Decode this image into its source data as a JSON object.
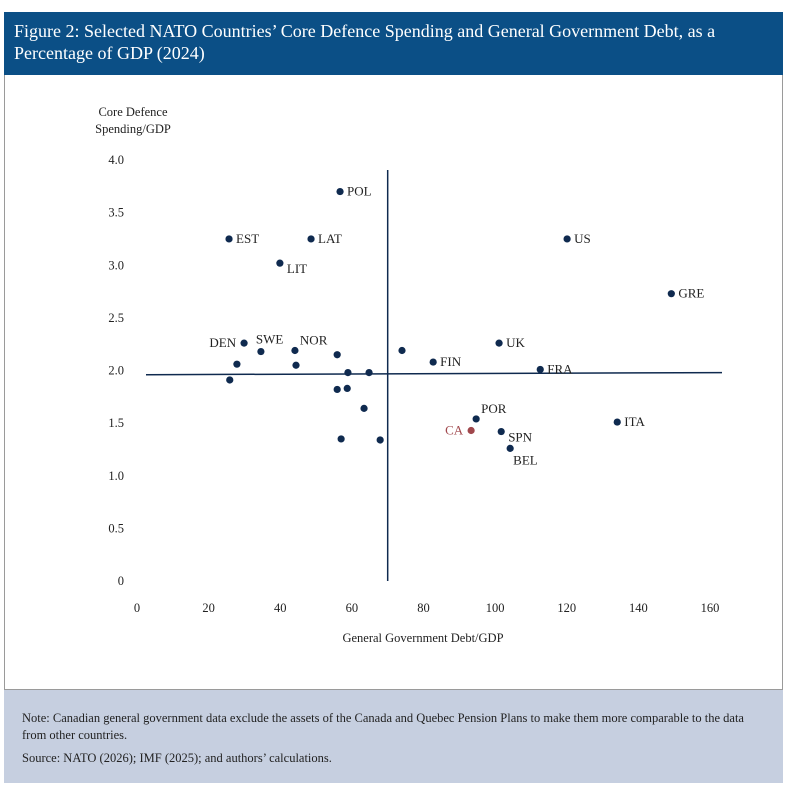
{
  "title": "Figure 2: Selected NATO Countries’ Core Defence Spending and General Government Debt, as a Percentage of GDP (2024)",
  "note": "Note: Canadian general government data exclude the assets of the Canada and Quebec Pension Plans to make them more comparable to the data from other countries.",
  "source": "Source: NATO (2026); IMF (2025); and authors’ calculations.",
  "colors": {
    "header": "#0b4f86",
    "point": "#0f2a4f",
    "highlight": "#a0474c",
    "note_bg": "#c6cfe0"
  },
  "chart_data": {
    "type": "scatter",
    "xlabel": "General Government Debt/GDP",
    "ylabel": [
      "Core Defence",
      "Spending/GDP"
    ],
    "xlim": [
      0,
      160
    ],
    "ylim": [
      0,
      4.0
    ],
    "xticks": [
      "0",
      "20",
      "40",
      "60",
      "80",
      "100",
      "120",
      "140",
      "160"
    ],
    "yticks": [
      "0",
      "0.5",
      "1.0",
      "1.5",
      "2.0",
      "2.5",
      "3.0",
      "3.5",
      "4.0"
    ],
    "grid": false,
    "reference_lines": {
      "vertical_x": 70,
      "horizontal_y": [
        1.96,
        1.98
      ]
    },
    "points": [
      {
        "label": "POL",
        "x": 56.7,
        "y": 3.7,
        "label_position": "right"
      },
      {
        "label": "EST",
        "x": 25.7,
        "y": 3.25,
        "label_position": "right"
      },
      {
        "label": "LAT",
        "x": 48.6,
        "y": 3.25,
        "label_position": "right"
      },
      {
        "label": "LIT",
        "x": 39.9,
        "y": 3.02,
        "label_position": "below-right"
      },
      {
        "label": "US",
        "x": 120.1,
        "y": 3.25,
        "label_position": "right"
      },
      {
        "label": "GRE",
        "x": 149.2,
        "y": 2.73,
        "label_position": "right"
      },
      {
        "label": "DEN",
        "x": 29.9,
        "y": 2.26,
        "label_position": "left"
      },
      {
        "label": "SWE",
        "x": 34.6,
        "y": 2.18,
        "label_position": "above"
      },
      {
        "label": "NOR",
        "x": 44.1,
        "y": 2.19,
        "label_position": "above-right"
      },
      {
        "label": "UK",
        "x": 101.1,
        "y": 2.26,
        "label_position": "right"
      },
      {
        "label": "FIN",
        "x": 82.7,
        "y": 2.08,
        "label_position": "right"
      },
      {
        "label": "FRA",
        "x": 112.6,
        "y": 2.01,
        "label_position": "right"
      },
      {
        "label": "POR",
        "x": 94.7,
        "y": 1.54,
        "label_position": "above-right"
      },
      {
        "label": "CA",
        "x": 93.3,
        "y": 1.43,
        "label_position": "left",
        "highlight": true
      },
      {
        "label": "SPN",
        "x": 101.7,
        "y": 1.42,
        "label_position": "below-right"
      },
      {
        "label": "BEL",
        "x": 104.2,
        "y": 1.26,
        "label_position": "below-right"
      },
      {
        "label": "ITA",
        "x": 134.1,
        "y": 1.51,
        "label_position": "right"
      },
      {
        "label": "",
        "x": 27.9,
        "y": 2.06
      },
      {
        "label": "",
        "x": 25.9,
        "y": 1.91
      },
      {
        "label": "",
        "x": 44.4,
        "y": 2.05
      },
      {
        "label": "",
        "x": 55.9,
        "y": 2.15
      },
      {
        "label": "",
        "x": 74.0,
        "y": 2.19
      },
      {
        "label": "",
        "x": 58.9,
        "y": 1.98
      },
      {
        "label": "",
        "x": 64.8,
        "y": 1.98
      },
      {
        "label": "",
        "x": 55.9,
        "y": 1.82
      },
      {
        "label": "",
        "x": 58.7,
        "y": 1.83
      },
      {
        "label": "",
        "x": 63.4,
        "y": 1.64
      },
      {
        "label": "",
        "x": 57.0,
        "y": 1.35
      },
      {
        "label": "",
        "x": 67.9,
        "y": 1.34
      }
    ]
  }
}
